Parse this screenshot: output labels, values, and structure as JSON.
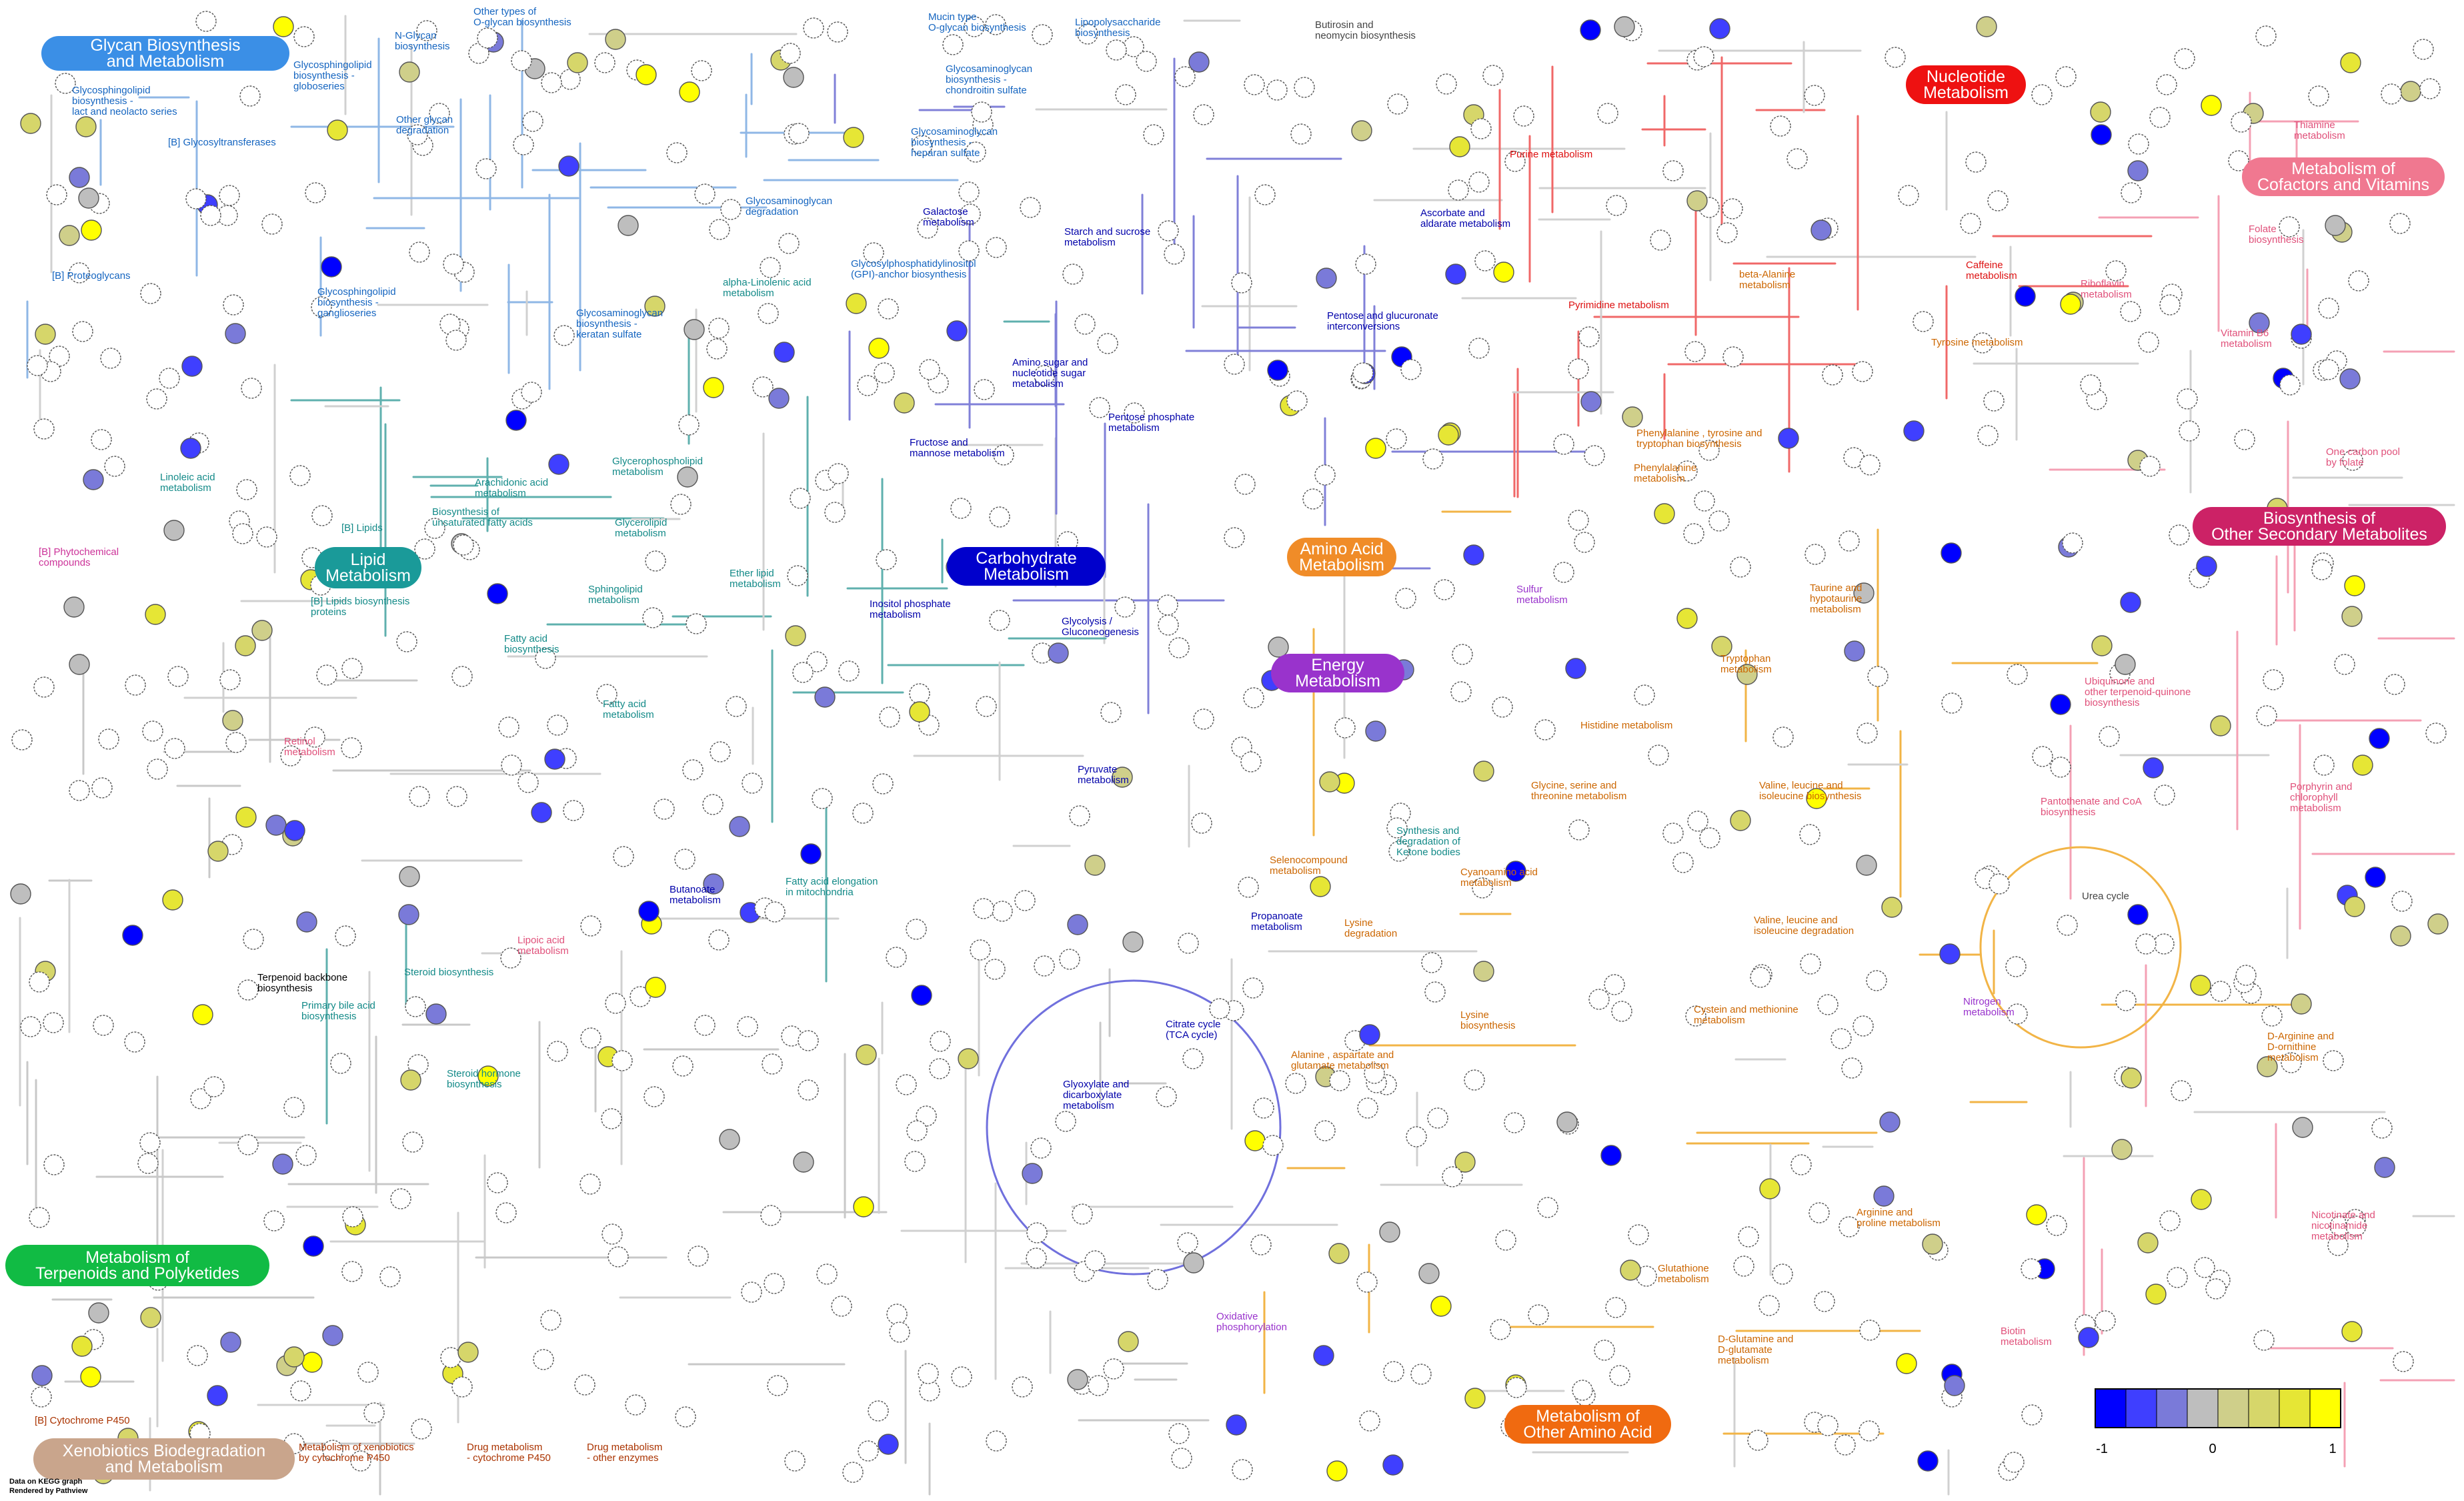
{
  "colors": {
    "neg1": "#0000ff",
    "neg075": "#3f3fff",
    "neg05": "#7a7ad9",
    "neg025": "#9a9ad0",
    "zero": "#bebebe",
    "pos025": "#cfcf8a",
    "pos05": "#d6d66a",
    "pos075": "#e6e635",
    "pos1": "#ffff00",
    "glycan": "#3b8fe6",
    "lipid": "#1a9a99",
    "carbohydrate": "#0000cc",
    "amino": "#f08c28",
    "energy": "#9933cc",
    "nucleotide": "#ee1111",
    "cofactor": "#f07890",
    "secondary": "#cc2266",
    "terpenoid": "#11bb44",
    "xenobiotic": "#c9a58c",
    "other_amino": "#f06a10"
  },
  "categories": [
    {
      "id": "glycan",
      "lines": [
        "Glycan Biosynthesis",
        "and Metabolism"
      ]
    },
    {
      "id": "lipid",
      "lines": [
        "Lipid",
        "Metabolism"
      ]
    },
    {
      "id": "carbohydrate",
      "lines": [
        "Carbohydrate",
        "Metabolism"
      ]
    },
    {
      "id": "amino",
      "lines": [
        "Amino Acid",
        "Metabolism"
      ]
    },
    {
      "id": "energy",
      "lines": [
        "Energy",
        "Metabolism"
      ]
    },
    {
      "id": "nucleotide",
      "lines": [
        "Nucleotide",
        "Metabolism"
      ]
    },
    {
      "id": "cofactor",
      "lines": [
        "Metabolism of",
        "Cofactors and Vitamins"
      ]
    },
    {
      "id": "secondary",
      "lines": [
        "Biosynthesis of",
        "Other Secondary Metabolites"
      ]
    },
    {
      "id": "terpenoid",
      "lines": [
        "Metabolism of",
        "Terpenoids and Polyketides"
      ]
    },
    {
      "id": "xenobiotic",
      "lines": [
        "Xenobiotics Biodegradation",
        "and Metabolism"
      ]
    },
    {
      "id": "other_amino",
      "lines": [
        "Metabolism of",
        "Other Amino Acid"
      ]
    }
  ],
  "pathways": [
    {
      "id": "glycosphingolipid-lacto",
      "lines": [
        "Glycosphingolipid",
        "biosynthesis -",
        "lact and neolacto series"
      ],
      "color": "#1565c0"
    },
    {
      "id": "glycosyltransferases",
      "lines": [
        "[B] Glycosyltransferases"
      ],
      "color": "#1565c0"
    },
    {
      "id": "n-glycan",
      "lines": [
        "N-Glycan",
        "biosynthesis"
      ],
      "color": "#1565c0"
    },
    {
      "id": "other-o-glycan",
      "lines": [
        "Other types of",
        "O-glycan biosynthesis"
      ],
      "color": "#1565c0"
    },
    {
      "id": "glycosphingolipid-globo",
      "lines": [
        "Glycosphingolipid",
        "biosynthesis -",
        "globoseries"
      ],
      "color": "#1565c0"
    },
    {
      "id": "other-glycan-degradation",
      "lines": [
        "Other glycan",
        "degradation"
      ],
      "color": "#1565c0"
    },
    {
      "id": "mucin-o-glycan",
      "lines": [
        "Mucin type",
        "O-glycan biosynthesis"
      ],
      "color": "#1565c0"
    },
    {
      "id": "lipopolysaccharide",
      "lines": [
        "Lipopolysaccharide",
        "biosynthesis"
      ],
      "color": "#1565c0"
    },
    {
      "id": "gag-chondroitin",
      "lines": [
        "Glycosaminoglycan",
        "biosynthesis -",
        "chondroitin sulfate"
      ],
      "color": "#1565c0"
    },
    {
      "id": "gag-heparan",
      "lines": [
        "Glycosaminoglycan",
        "biosynthesis -",
        "heparan sulfate"
      ],
      "color": "#1565c0"
    },
    {
      "id": "gag-degradation",
      "lines": [
        "Glycosaminoglycan",
        "degradation"
      ],
      "color": "#1565c0"
    },
    {
      "id": "proteoglycans",
      "lines": [
        "[B] Proteoglycans"
      ],
      "color": "#1565c0"
    },
    {
      "id": "glycosphingolipid-ganglio",
      "lines": [
        "Glycosphingolipid",
        "biosynthesis -",
        "ganglioseries"
      ],
      "color": "#1565c0"
    },
    {
      "id": "gag-keratan",
      "lines": [
        "Glycosaminoglycan",
        "biosynthesis -",
        "keratan sulfate"
      ],
      "color": "#1565c0"
    },
    {
      "id": "gpi-anchor",
      "lines": [
        "Glycosylphosphatidylinositol",
        "(GPI)-anchor biosynthesis"
      ],
      "color": "#1565c0"
    },
    {
      "id": "butirosin",
      "lines": [
        "Butirosin and",
        "neomycin biosynthesis"
      ],
      "color": "#444444"
    },
    {
      "id": "galactose",
      "lines": [
        "Galactose",
        "metabolism"
      ],
      "color": "#0000aa"
    },
    {
      "id": "starch-sucrose",
      "lines": [
        "Starch and sucrose",
        "metabolism"
      ],
      "color": "#0000aa"
    },
    {
      "id": "ascorbate",
      "lines": [
        "Ascorbate and",
        "aldarate metabolism"
      ],
      "color": "#0000aa"
    },
    {
      "id": "amino-sugar",
      "lines": [
        "Amino sugar and",
        "nucleotide sugar",
        "metabolism"
      ],
      "color": "#0000aa"
    },
    {
      "id": "pentose-glucuronate",
      "lines": [
        "Pentose and glucuronate",
        "interconversions"
      ],
      "color": "#0000aa"
    },
    {
      "id": "pentose-phosphate",
      "lines": [
        "Pentose phosphate",
        "metabolism"
      ],
      "color": "#0000aa"
    },
    {
      "id": "fructose-mannose",
      "lines": [
        "Fructose and",
        "mannose metabolism"
      ],
      "color": "#0000aa"
    },
    {
      "id": "inositol-phosphate",
      "lines": [
        "Inositol phosphate",
        "metabolism"
      ],
      "color": "#0000aa"
    },
    {
      "id": "glycolysis",
      "lines": [
        "Glycolysis /",
        "Gluconeogenesis"
      ],
      "color": "#0000aa"
    },
    {
      "id": "pyruvate",
      "lines": [
        "Pyruvate",
        "metabolism"
      ],
      "color": "#0000aa"
    },
    {
      "id": "butanoate",
      "lines": [
        "Butanoate",
        "metabolism"
      ],
      "color": "#0000aa"
    },
    {
      "id": "propanoate",
      "lines": [
        "Propanoate",
        "metabolism"
      ],
      "color": "#0000aa"
    },
    {
      "id": "citrate-cycle",
      "lines": [
        "Citrate cycle",
        "(TCA cycle)"
      ],
      "color": "#0000aa"
    },
    {
      "id": "glyoxylate",
      "lines": [
        "Glyoxylate and",
        "dicarboxylate",
        "metabolism"
      ],
      "color": "#0000aa"
    },
    {
      "id": "oxidative-phosphorylation",
      "lines": [
        "Oxidative",
        "phosphorylation"
      ],
      "color": "#9933cc"
    },
    {
      "id": "linoleic",
      "lines": [
        "Linoleic acid",
        "metabolism"
      ],
      "color": "#138a88"
    },
    {
      "id": "alpha-linolenic",
      "lines": [
        "alpha-Linolenic acid",
        "metabolism"
      ],
      "color": "#138a88"
    },
    {
      "id": "arachidonic",
      "lines": [
        "Arachidonic acid",
        "metabolism"
      ],
      "color": "#138a88"
    },
    {
      "id": "b-lipids",
      "lines": [
        "[B] Lipids"
      ],
      "color": "#138a88"
    },
    {
      "id": "unsat-fatty-acids",
      "lines": [
        "Biosynthesis of",
        "unsaturated fatty acids"
      ],
      "color": "#138a88"
    },
    {
      "id": "glycerophospholipid",
      "lines": [
        "Glycerophospholipid",
        "metabolism"
      ],
      "color": "#138a88"
    },
    {
      "id": "glycerolipid",
      "lines": [
        "Glycerolipid",
        "metabolism"
      ],
      "color": "#138a88"
    },
    {
      "id": "ether-lipid",
      "lines": [
        "Ether lipid",
        "metabolism"
      ],
      "color": "#138a88"
    },
    {
      "id": "b-lipids-proteins",
      "lines": [
        "[B] Lipids biosynthesis",
        "proteins"
      ],
      "color": "#138a88"
    },
    {
      "id": "sphingolipid",
      "lines": [
        "Sphingolipid",
        "metabolism"
      ],
      "color": "#138a88"
    },
    {
      "id": "fatty-acid-bio",
      "lines": [
        "Fatty acid",
        "biosynthesis"
      ],
      "color": "#138a88"
    },
    {
      "id": "fatty-acid-metab",
      "lines": [
        "Fatty acid",
        "metabolism"
      ],
      "color": "#138a88"
    },
    {
      "id": "fatty-acid-elongation",
      "lines": [
        "Fatty acid elongation",
        "in mitochondria"
      ],
      "color": "#138a88"
    },
    {
      "id": "primary-bile",
      "lines": [
        "Primary bile acid",
        "biosynthesis"
      ],
      "color": "#138a88"
    },
    {
      "id": "steroid",
      "lines": [
        "Steroid biosynthesis"
      ],
      "color": "#138a88"
    },
    {
      "id": "steroid-hormone",
      "lines": [
        "Steroid hormone",
        "biosynthesis"
      ],
      "color": "#138a88"
    },
    {
      "id": "phytochemical",
      "lines": [
        "[B] Phytochemical",
        "compounds"
      ],
      "color": "#cc3399"
    },
    {
      "id": "retinol",
      "lines": [
        "Retinol",
        "metabolism"
      ],
      "color": "#e0507a"
    },
    {
      "id": "lipoic",
      "lines": [
        "Lipoic acid",
        "metabolism"
      ],
      "color": "#e0507a"
    },
    {
      "id": "terpenoid-backbone",
      "lines": [
        "Terpenoid backbone",
        "biosynthesis"
      ],
      "color": "#000000"
    },
    {
      "id": "cytochrome-b",
      "lines": [
        "[B] Cytochrome P450"
      ],
      "color": "#aa3300"
    },
    {
      "id": "xeno-p450",
      "lines": [
        "Metabolism of xenobiotics",
        "by cytochrome P450"
      ],
      "color": "#aa3300"
    },
    {
      "id": "drug-p450",
      "lines": [
        "Drug metabolism",
        "- cytochrome P450"
      ],
      "color": "#aa3300"
    },
    {
      "id": "drug-other",
      "lines": [
        "Drug metabolism",
        "- other enzymes"
      ],
      "color": "#aa3300"
    },
    {
      "id": "purine",
      "lines": [
        "Purine metabolism"
      ],
      "color": "#dd1111"
    },
    {
      "id": "pyrimidine",
      "lines": [
        "Pyrimidine metabolism"
      ],
      "color": "#dd1111"
    },
    {
      "id": "beta-alanine",
      "lines": [
        "beta-Alanine",
        "metabolism"
      ],
      "color": "#cc6600"
    },
    {
      "id": "caffeine",
      "lines": [
        "Caffeine",
        "metabolism"
      ],
      "color": "#dd1111"
    },
    {
      "id": "tyrosine",
      "lines": [
        "Tyrosine metabolism"
      ],
      "color": "#cc6600"
    },
    {
      "id": "thiamine",
      "lines": [
        "Thiamine",
        "metabolism"
      ],
      "color": "#e0507a"
    },
    {
      "id": "riboflavin",
      "lines": [
        "Riboflavin",
        "metabolism"
      ],
      "color": "#e0507a"
    },
    {
      "id": "folate",
      "lines": [
        "Folate",
        "biosynthesis"
      ],
      "color": "#e0507a"
    },
    {
      "id": "vitamin-b6",
      "lines": [
        "Vitamin B6",
        "metabolism"
      ],
      "color": "#e0507a"
    },
    {
      "id": "one-carbon",
      "lines": [
        "One carbon pool",
        "by folate"
      ],
      "color": "#e0507a"
    },
    {
      "id": "phe-tyr-trp",
      "lines": [
        "Phenylalanine , tyrosine and",
        "tryptophan biosynthesis"
      ],
      "color": "#cc6600"
    },
    {
      "id": "phenylalanine",
      "lines": [
        "Phenylalanine",
        "metabolism"
      ],
      "color": "#cc6600"
    },
    {
      "id": "sulfur",
      "lines": [
        "Sulfur",
        "metabolism"
      ],
      "color": "#9933cc"
    },
    {
      "id": "taurine",
      "lines": [
        "Taurine and",
        "hypotaurine",
        "metabolism"
      ],
      "color": "#cc6600"
    },
    {
      "id": "tryptophan",
      "lines": [
        "Tryptophan",
        "metabolism"
      ],
      "color": "#cc6600"
    },
    {
      "id": "histidine",
      "lines": [
        "Histidine metabolism"
      ],
      "color": "#cc6600"
    },
    {
      "id": "ubiquinone",
      "lines": [
        "Ubiquinone and",
        "other terpenoid-quinone",
        "biosynthesis"
      ],
      "color": "#e0507a"
    },
    {
      "id": "glycine-serine",
      "lines": [
        "Glycine, serine and",
        "threonine metabolism"
      ],
      "color": "#cc6600"
    },
    {
      "id": "val-leu-ile-bio",
      "lines": [
        "Valine, leucine and",
        "isoleucine biosynthesis"
      ],
      "color": "#cc6600"
    },
    {
      "id": "pantothenate",
      "lines": [
        "Pantothenate and CoA",
        "biosynthesis"
      ],
      "color": "#e0507a"
    },
    {
      "id": "porphyrin",
      "lines": [
        "Porphyrin and",
        "chlorophyll",
        "metabolism"
      ],
      "color": "#e0507a"
    },
    {
      "id": "ketone-bodies",
      "lines": [
        "Synthesis and",
        "degradation of",
        "Ketone bodies"
      ],
      "color": "#138a88"
    },
    {
      "id": "selenocompound",
      "lines": [
        "Selenocompound",
        "metabolism"
      ],
      "color": "#cc6600"
    },
    {
      "id": "cyanoamino",
      "lines": [
        "Cyanoamino acid",
        "metabolism"
      ],
      "color": "#cc6600"
    },
    {
      "id": "lysine-degradation",
      "lines": [
        "Lysine",
        "degradation"
      ],
      "color": "#cc6600"
    },
    {
      "id": "urea-cycle",
      "lines": [
        "Urea cycle"
      ],
      "color": "#444444"
    },
    {
      "id": "val-leu-ile-deg",
      "lines": [
        "Valine, leucine and",
        "isoleucine degradation"
      ],
      "color": "#cc6600"
    },
    {
      "id": "lysine-bio",
      "lines": [
        "Lysine",
        "biosynthesis"
      ],
      "color": "#cc6600"
    },
    {
      "id": "cysteine-methionine",
      "lines": [
        "Cystein and methionine",
        "metabolism"
      ],
      "color": "#cc6600"
    },
    {
      "id": "nitrogen",
      "lines": [
        "Nitrogen",
        "metabolism"
      ],
      "color": "#9933cc"
    },
    {
      "id": "d-arginine",
      "lines": [
        "D-Arginine and",
        "D-ornithine",
        "metabolism"
      ],
      "color": "#cc6600"
    },
    {
      "id": "alanine-aspartate",
      "lines": [
        "Alanine , aspartate and",
        "glutamate metabolism"
      ],
      "color": "#cc6600"
    },
    {
      "id": "nicotinate",
      "lines": [
        "Nicotinate and",
        "nicotinamide",
        "metabolism"
      ],
      "color": "#e0507a"
    },
    {
      "id": "arginine-proline",
      "lines": [
        "Arginine and",
        "proline metabolism"
      ],
      "color": "#cc6600"
    },
    {
      "id": "glutathione",
      "lines": [
        "Glutathione",
        "metabolism"
      ],
      "color": "#cc6600"
    },
    {
      "id": "biotin",
      "lines": [
        "Biotin",
        "metabolism"
      ],
      "color": "#e0507a"
    },
    {
      "id": "d-glutamine",
      "lines": [
        "D-Glutamine and",
        "D-glutamate",
        "metabolism"
      ],
      "color": "#cc6600"
    }
  ],
  "legend": {
    "ticks": [
      "-1",
      "0",
      "1"
    ]
  },
  "footer": {
    "lines": [
      "Data on KEGG graph",
      "Rendered by Pathview"
    ]
  }
}
